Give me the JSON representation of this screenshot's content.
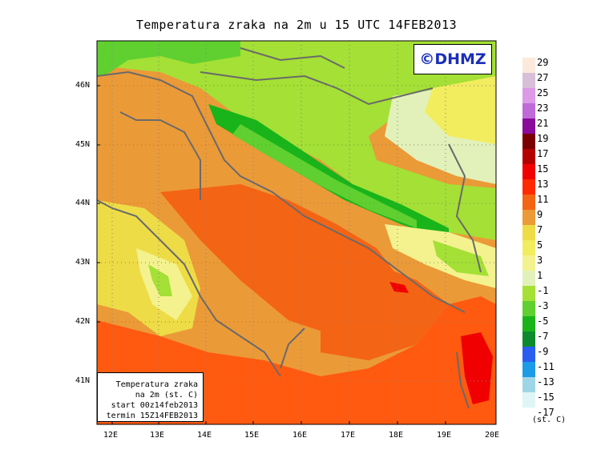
{
  "title": "Temperatura zraka na 2m u 15 UTC 14FEB2013",
  "logo": "©DHMZ",
  "y_axis_labels": [
    "46N",
    "45N",
    "44N",
    "43N",
    "42N",
    "41N"
  ],
  "x_axis_labels": [
    "12E",
    "13E",
    "14E",
    "15E",
    "16E",
    "17E",
    "18E",
    "19E",
    "20E"
  ],
  "info_box": {
    "line1": "Temperatura zraka",
    "line2": "na 2m (st. C)",
    "line3": "start 00z14feb2013",
    "line4": "termin 15Z14FEB2013"
  },
  "legend": {
    "labels": [
      "29",
      "27",
      "25",
      "23",
      "21",
      "19",
      "17",
      "15",
      "13",
      "11",
      "9",
      "7",
      "5",
      "3",
      "1",
      "-1",
      "-3",
      "-5",
      "-7",
      "-9",
      "-11",
      "-13",
      "-15",
      "-17"
    ],
    "colors": [
      "#fbe9dc",
      "#d8bfd8",
      "#dd9ae6",
      "#c06ad8",
      "#8a0a9a",
      "#7a0000",
      "#b50000",
      "#f00000",
      "#ff2a00",
      "#f46415",
      "#eb9a38",
      "#eedc46",
      "#f2ec5f",
      "#f4f28e",
      "#e2f1b9",
      "#a4e035",
      "#5fd030",
      "#19b41a",
      "#0e8a2e",
      "#2a5ef0",
      "#1c9be8",
      "#9fd6e6",
      "#e0f6f6",
      "#ffffff"
    ],
    "unit": "(st. C)"
  }
}
